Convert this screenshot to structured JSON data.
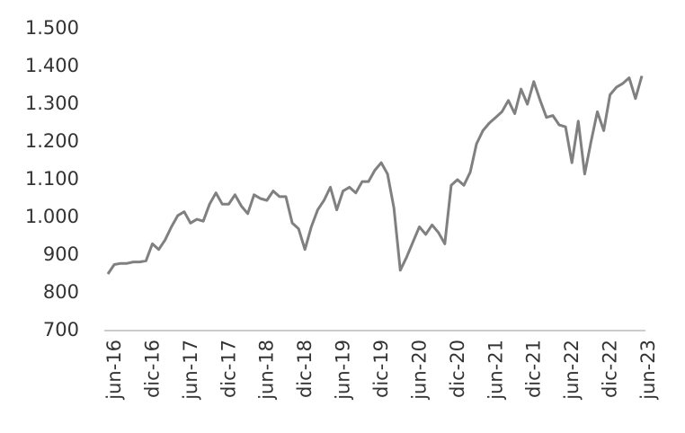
{
  "chart_data": {
    "type": "line",
    "categories": [
      "jun-16",
      null,
      null,
      null,
      null,
      null,
      "dic-16",
      null,
      null,
      null,
      null,
      null,
      "jun-17",
      null,
      null,
      null,
      null,
      null,
      "dic-17",
      null,
      null,
      null,
      null,
      null,
      "jun-18",
      null,
      null,
      null,
      null,
      null,
      "dic-18",
      null,
      null,
      null,
      null,
      null,
      "jun-19",
      null,
      null,
      null,
      null,
      null,
      "dic-19",
      null,
      null,
      null,
      null,
      null,
      "jun-20",
      null,
      null,
      null,
      null,
      null,
      "dic-20",
      null,
      null,
      null,
      null,
      null,
      "jun-21",
      null,
      null,
      null,
      null,
      null,
      "dic-21",
      null,
      null,
      null,
      null,
      null,
      "jun-22",
      null,
      null,
      null,
      null,
      null,
      "dic-22",
      null,
      null,
      null,
      null,
      null,
      "jun-23"
    ],
    "values": [
      850,
      875,
      878,
      878,
      882,
      882,
      885,
      930,
      915,
      940,
      975,
      1005,
      1015,
      985,
      995,
      990,
      1035,
      1065,
      1035,
      1035,
      1060,
      1030,
      1010,
      1060,
      1050,
      1045,
      1070,
      1055,
      1055,
      985,
      970,
      915,
      975,
      1020,
      1045,
      1080,
      1020,
      1070,
      1080,
      1065,
      1095,
      1095,
      1125,
      1145,
      1115,
      1025,
      860,
      895,
      935,
      975,
      955,
      980,
      960,
      930,
      1085,
      1100,
      1085,
      1120,
      1195,
      1230,
      1250,
      1265,
      1280,
      1310,
      1275,
      1340,
      1300,
      1360,
      1310,
      1265,
      1270,
      1245,
      1240,
      1145,
      1255,
      1115,
      1200,
      1280,
      1230,
      1325,
      1345,
      1355,
      1370,
      1315,
      1375
    ],
    "color": "#808080",
    "ylim": [
      700,
      1500
    ],
    "yticks": [
      700,
      800,
      900,
      {
        "value": 1000,
        "label": "1.000"
      },
      {
        "value": 1100,
        "label": "1.100"
      },
      {
        "value": 1200,
        "label": "1.200"
      },
      {
        "value": 1300,
        "label": "1.300"
      },
      {
        "value": 1400,
        "label": "1.400"
      },
      {
        "value": 1500,
        "label": "1.500"
      }
    ],
    "grid": false
  }
}
